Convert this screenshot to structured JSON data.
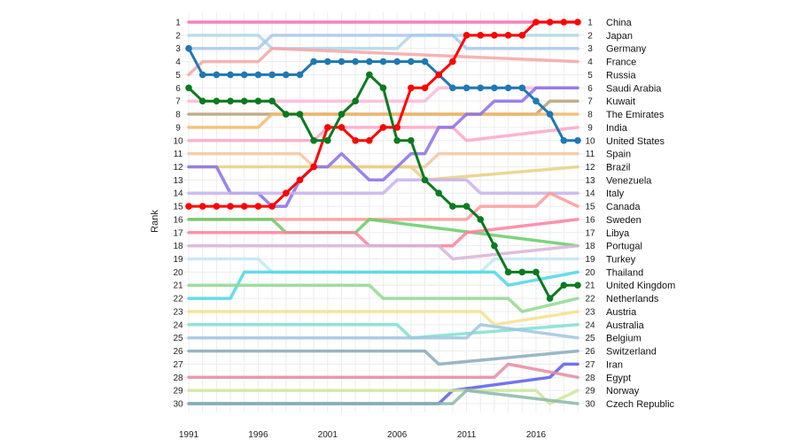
{
  "chart_data": {
    "type": "line",
    "title": "",
    "xlabel": "",
    "ylabel": "Rank",
    "xlim": [
      1991,
      2019
    ],
    "ylim": [
      1,
      30
    ],
    "y_reversed": true,
    "grid": true,
    "x_ticks": [
      "1991",
      "1996",
      "2001",
      "2006",
      "2011",
      "2016"
    ],
    "rank_labels": [
      "1",
      "2",
      "3",
      "4",
      "5",
      "6",
      "7",
      "8",
      "9",
      "10",
      "11",
      "12",
      "13",
      "14",
      "15",
      "16",
      "17",
      "18",
      "19",
      "20",
      "21",
      "22",
      "23",
      "24",
      "25",
      "26",
      "27",
      "28",
      "29",
      "30"
    ],
    "countries": [
      "China",
      "Japan",
      "Germany",
      "France",
      "Russia",
      "Saudi Arabia",
      "Kuwait",
      "The Emirates",
      "India",
      "United States",
      "Spain",
      "Brazil",
      "Venezuela",
      "Italy",
      "Canada",
      "Sweden",
      "Libya",
      "Portugal",
      "Turkey",
      "Thailand",
      "United Kingdom",
      "Netherlands",
      "Austria",
      "Australia",
      "Belgium",
      "Switzerland",
      "Iran",
      "Egypt",
      "Norway",
      "Czech Republic"
    ],
    "series": [
      {
        "name": "China",
        "color": "#ff69b4",
        "x": [
          1991,
          2019
        ],
        "y": [
          1,
          1
        ]
      },
      {
        "name": "Japan",
        "color": "#add8e6",
        "x": [
          1991,
          1996,
          1997,
          2006,
          2007,
          2016,
          2017,
          2019
        ],
        "y": [
          2,
          2,
          3,
          3,
          2,
          2,
          2,
          2
        ]
      },
      {
        "name": "Germany",
        "color": "#a8c8ec",
        "x": [
          1991,
          1996,
          1997,
          2010,
          2011,
          2015,
          2016,
          2019
        ],
        "y": [
          3,
          3,
          2,
          2,
          3,
          3,
          3,
          3
        ]
      },
      {
        "name": "France",
        "color": "#f4a6a6",
        "x": [
          1991,
          1992,
          1996,
          1997,
          2019
        ],
        "y": [
          5,
          4,
          4,
          3,
          4
        ]
      },
      {
        "name": "Russia",
        "color": "#1f78b4",
        "emphasis": true,
        "x": [
          1991,
          1992,
          1993,
          1994,
          1995,
          1996,
          1997,
          1998,
          1999,
          2000,
          2001,
          2002,
          2003,
          2004,
          2005,
          2006,
          2007,
          2008,
          2009,
          2010,
          2011,
          2012,
          2013,
          2014,
          2015,
          2016,
          2017,
          2018,
          2019
        ],
        "y": [
          3,
          5,
          5,
          5,
          5,
          5,
          5,
          5,
          5,
          4,
          4,
          4,
          4,
          4,
          4,
          4,
          4,
          4,
          5,
          6,
          6,
          6,
          6,
          6,
          6,
          7,
          8,
          10,
          10
        ]
      },
      {
        "name": "Saudi Arabia",
        "color": "#ffb6d9",
        "x": [
          1991,
          2008,
          2009,
          2019
        ],
        "y": [
          7,
          7,
          6,
          6
        ]
      },
      {
        "name": "Kuwait",
        "color": "#b8a07a",
        "x": [
          1991,
          2016,
          2017,
          2019
        ],
        "y": [
          8,
          8,
          7,
          7
        ]
      },
      {
        "name": "The Emirates",
        "color": "#f4b86a",
        "x": [
          1991,
          1996,
          1997,
          2015,
          2016,
          2019
        ],
        "y": [
          9,
          9,
          8,
          8,
          8,
          8
        ]
      },
      {
        "name": "India",
        "color": "#ffa6c9",
        "x": [
          1991,
          2000,
          2001,
          2010,
          2011,
          2019
        ],
        "y": [
          10,
          10,
          9,
          9,
          10,
          9
        ]
      },
      {
        "name": "United States",
        "color": "#ff0000",
        "emphasis": true,
        "x": [
          1991,
          1992,
          1993,
          1994,
          1995,
          1996,
          1997,
          1998,
          1999,
          2000,
          2001,
          2002,
          2003,
          2004,
          2005,
          2006,
          2007,
          2008,
          2009,
          2010,
          2011,
          2012,
          2013,
          2014,
          2015,
          2016,
          2017,
          2018,
          2019
        ],
        "y": [
          15,
          15,
          15,
          15,
          15,
          15,
          15,
          14,
          13,
          12,
          9,
          9,
          10,
          10,
          9,
          9,
          6,
          6,
          5,
          4,
          2,
          2,
          2,
          2,
          2,
          1,
          1,
          1,
          1
        ]
      },
      {
        "name": "Spain",
        "color": "#f5c6a0",
        "x": [
          1991,
          1999,
          2000,
          2008,
          2009,
          2019
        ],
        "y": [
          11,
          11,
          12,
          12,
          11,
          11
        ]
      },
      {
        "name": "Brazil",
        "color": "#e8d080",
        "x": [
          1991,
          2007,
          2008,
          2019
        ],
        "y": [
          12,
          12,
          13,
          12
        ]
      },
      {
        "name": "Venezuela",
        "color": "#8a6ee8",
        "x": [
          1991,
          1993,
          1994,
          1996,
          1997,
          1998,
          1999,
          2000,
          2001,
          2002,
          2003,
          2004,
          2005,
          2006,
          2007,
          2008,
          2009,
          2010,
          2011,
          2012,
          2013,
          2014,
          2015,
          2016,
          2017,
          2018,
          2019
        ],
        "y": [
          12,
          12,
          14,
          14,
          15,
          15,
          13,
          12,
          12,
          11,
          12,
          13,
          13,
          12,
          11,
          11,
          9,
          9,
          8,
          8,
          7,
          7,
          7,
          6,
          6,
          6,
          6
        ]
      },
      {
        "name": "Italy",
        "color": "#c7b2f0",
        "x": [
          1991,
          2005,
          2006,
          2011,
          2012,
          2019
        ],
        "y": [
          14,
          14,
          13,
          13,
          14,
          14
        ]
      },
      {
        "name": "Canada",
        "color": "#ff9999",
        "x": [
          1991,
          2011,
          2012,
          2016,
          2017,
          2019
        ],
        "y": [
          16,
          16,
          15,
          15,
          14,
          15
        ]
      },
      {
        "name": "Sweden",
        "color": "#66cc66",
        "x": [
          1991,
          1997,
          1998,
          2003,
          2004,
          2019
        ],
        "y": [
          16,
          16,
          17,
          17,
          16,
          18
        ]
      },
      {
        "name": "Libya",
        "color": "#ff7f9f",
        "x": [
          1991,
          2003,
          2004,
          2010,
          2011,
          2019
        ],
        "y": [
          17,
          17,
          18,
          18,
          17,
          16
        ]
      },
      {
        "name": "Portugal",
        "color": "#d9b3d9",
        "x": [
          1991,
          2009,
          2010,
          2019
        ],
        "y": [
          18,
          18,
          19,
          18
        ]
      },
      {
        "name": "Turkey",
        "color": "#bfe8f4",
        "x": [
          1991,
          1996,
          1997,
          2012,
          2013,
          2019
        ],
        "y": [
          19,
          19,
          20,
          20,
          19,
          19
        ]
      },
      {
        "name": "Thailand",
        "color": "#4ad7e8",
        "x": [
          1991,
          1994,
          1995,
          2013,
          2014,
          2019
        ],
        "y": [
          22,
          22,
          20,
          20,
          21,
          20
        ]
      },
      {
        "name": "United Kingdom",
        "color": "#0b7a1f",
        "emphasis": true,
        "x": [
          1991,
          1992,
          1993,
          1994,
          1995,
          1996,
          1997,
          1998,
          1999,
          2000,
          2001,
          2002,
          2003,
          2004,
          2005,
          2006,
          2007,
          2008,
          2009,
          2010,
          2011,
          2012,
          2013,
          2014,
          2015,
          2016,
          2017,
          2018,
          2019
        ],
        "y": [
          6,
          7,
          7,
          7,
          7,
          7,
          7,
          8,
          8,
          10,
          10,
          8,
          7,
          5,
          6,
          10,
          10,
          13,
          14,
          15,
          15,
          16,
          18,
          20,
          20,
          20,
          22,
          21,
          21
        ]
      },
      {
        "name": "Netherlands",
        "color": "#8fd98f",
        "x": [
          1991,
          2004,
          2005,
          2014,
          2015,
          2019
        ],
        "y": [
          21,
          21,
          22,
          22,
          23,
          22
        ]
      },
      {
        "name": "Austria",
        "color": "#f4e08a",
        "x": [
          1991,
          2012,
          2013,
          2019
        ],
        "y": [
          23,
          23,
          24,
          23
        ]
      },
      {
        "name": "Australia",
        "color": "#7fdfd0",
        "x": [
          1991,
          2006,
          2007,
          2019
        ],
        "y": [
          24,
          24,
          25,
          24
        ]
      },
      {
        "name": "Belgium",
        "color": "#9fc6e0",
        "x": [
          1991,
          2011,
          2012,
          2019
        ],
        "y": [
          25,
          25,
          24,
          25
        ]
      },
      {
        "name": "Switzerland",
        "color": "#88aabb",
        "x": [
          1991,
          2008,
          2009,
          2019
        ],
        "y": [
          26,
          26,
          27,
          26
        ]
      },
      {
        "name": "Iran",
        "color": "#5a5af0",
        "x": [
          1991,
          2009,
          2010,
          2017,
          2018,
          2019
        ],
        "y": [
          30,
          30,
          29,
          28,
          27,
          27
        ]
      },
      {
        "name": "Egypt",
        "color": "#e88aa0",
        "x": [
          1991,
          2013,
          2014,
          2019
        ],
        "y": [
          28,
          28,
          27,
          28
        ]
      },
      {
        "name": "Norway",
        "color": "#cde89a",
        "x": [
          1991,
          2016,
          2017,
          2019
        ],
        "y": [
          29,
          29,
          30,
          29
        ]
      },
      {
        "name": "Czech Republic",
        "color": "#88b8a8",
        "x": [
          1991,
          2010,
          2011,
          2019
        ],
        "y": [
          30,
          30,
          29,
          30
        ]
      }
    ]
  }
}
